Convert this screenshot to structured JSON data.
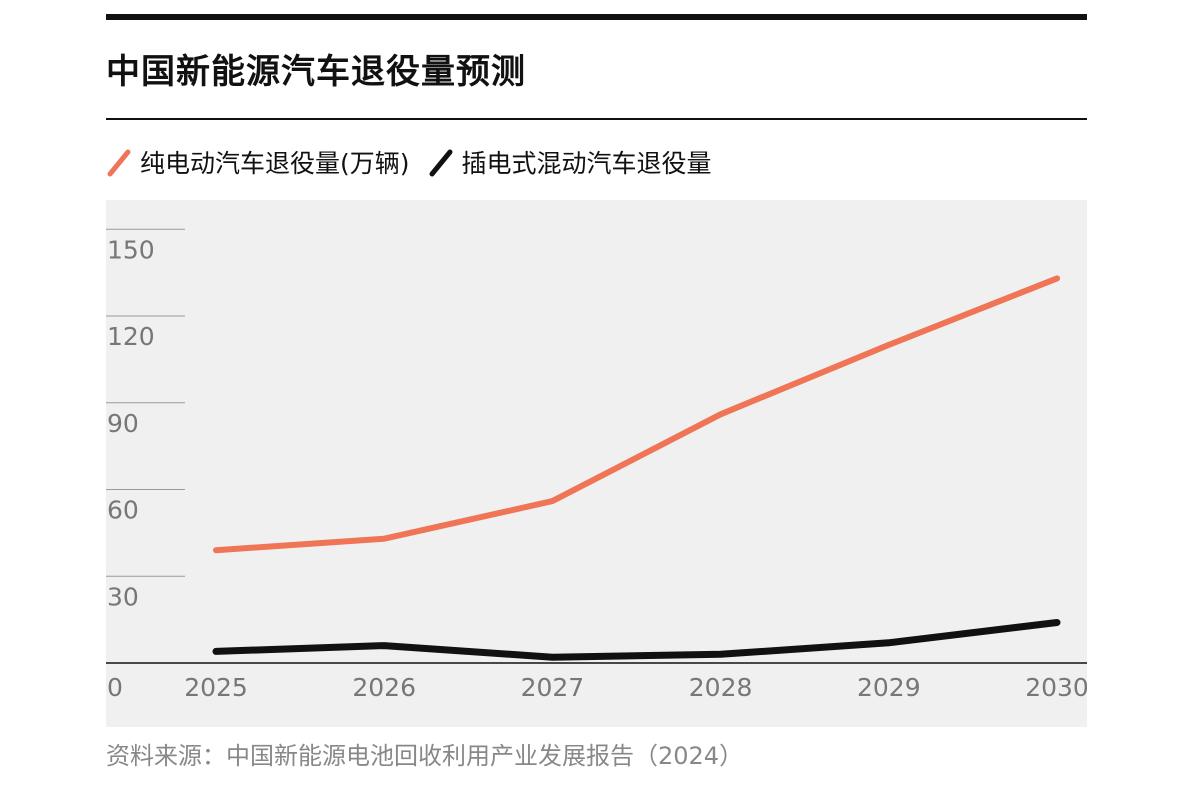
{
  "title": "中国新能源汽车退役量预测",
  "source": "资料来源：中国新能源电池回收利用产业发展报告（2024）",
  "colors": {
    "bev": "#f07456",
    "phev": "#111111",
    "plot_bg": "#f0f0f0"
  },
  "chart_data": {
    "type": "line",
    "categories": [
      "2025",
      "2026",
      "2027",
      "2028",
      "2029",
      "2030"
    ],
    "series": [
      {
        "name": "纯电动汽车退役量(万辆)",
        "values": [
          39,
          43,
          56,
          86,
          110,
          133
        ],
        "color": "#f07456"
      },
      {
        "name": "插电式混动汽车退役量",
        "values": [
          4,
          6,
          2,
          3,
          7,
          14
        ],
        "color": "#111111"
      }
    ],
    "y_ticks": [
      "0",
      "30",
      "60",
      "90",
      "120",
      "150"
    ],
    "ylim": [
      0,
      160
    ],
    "grid": "partial horizontal ticks on left",
    "legend": "top-left",
    "xlabel": "",
    "ylabel": ""
  }
}
